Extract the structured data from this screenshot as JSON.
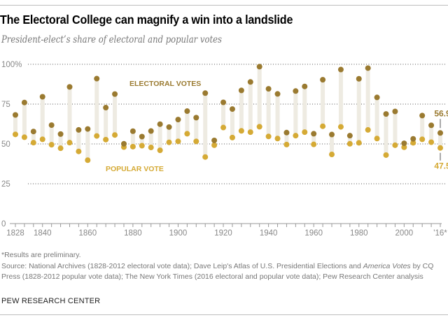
{
  "header": {
    "title": "The Electoral College can magnify a win into a landslide",
    "subtitle": "President-elect’s share of electoral and popular votes"
  },
  "chart_data": {
    "type": "scatter",
    "subtype": "dumbbell",
    "title": "The Electoral College can magnify a win into a landslide",
    "subtitle": "President-elect’s share of electoral and popular votes",
    "xlabel": "",
    "ylabel": "",
    "ylim": [
      0,
      100
    ],
    "y_ticks": [
      0,
      25,
      50,
      75,
      100
    ],
    "y_tick_labels": [
      "0",
      "25",
      "50",
      "75",
      "100%"
    ],
    "x_tick_labels": [
      "1828",
      "1840",
      "1860",
      "1880",
      "1900",
      "1920",
      "1940",
      "1960",
      "1980",
      "2000",
      "'16*"
    ],
    "x_tick_years": [
      1828,
      1840,
      1860,
      1880,
      1900,
      1920,
      1940,
      1960,
      1980,
      2000,
      2016
    ],
    "grid": true,
    "x": [
      1828,
      1832,
      1836,
      1840,
      1844,
      1848,
      1852,
      1856,
      1860,
      1864,
      1868,
      1872,
      1876,
      1880,
      1884,
      1888,
      1892,
      1896,
      1900,
      1904,
      1908,
      1912,
      1916,
      1920,
      1924,
      1928,
      1932,
      1936,
      1940,
      1944,
      1948,
      1952,
      1956,
      1960,
      1964,
      1968,
      1972,
      1976,
      1980,
      1984,
      1988,
      1992,
      1996,
      2000,
      2004,
      2008,
      2012,
      2016
    ],
    "series": [
      {
        "name": "Electoral votes",
        "label": "ELECTORAL VOTES",
        "color": "#9a7a30",
        "values": [
          68.2,
          76.0,
          57.8,
          79.6,
          61.8,
          56.2,
          85.8,
          58.8,
          59.4,
          91.0,
          72.8,
          81.3,
          50.1,
          58.0,
          54.6,
          58.1,
          62.4,
          60.6,
          65.3,
          70.6,
          66.5,
          81.9,
          52.2,
          76.1,
          71.9,
          83.6,
          88.9,
          98.5,
          84.6,
          81.4,
          57.1,
          83.2,
          86.1,
          56.4,
          90.3,
          55.9,
          96.7,
          55.2,
          90.9,
          97.6,
          79.2,
          68.8,
          70.4,
          50.4,
          53.2,
          67.8,
          61.7,
          56.9
        ]
      },
      {
        "name": "Popular vote",
        "label": "POPULAR VOTE",
        "color": "#d5aa35",
        "values": [
          56.0,
          54.2,
          50.8,
          52.9,
          49.5,
          47.3,
          50.8,
          45.3,
          39.8,
          55.0,
          52.7,
          55.6,
          48.0,
          48.3,
          48.9,
          47.8,
          46.0,
          51.0,
          51.6,
          56.4,
          51.6,
          41.8,
          49.2,
          60.3,
          54.0,
          58.2,
          57.4,
          60.8,
          54.7,
          53.4,
          49.6,
          55.2,
          57.4,
          49.7,
          61.1,
          43.4,
          60.7,
          50.1,
          50.7,
          58.8,
          53.4,
          43.0,
          49.2,
          47.9,
          50.7,
          52.9,
          51.1,
          47.5
        ]
      }
    ],
    "annotations": [
      {
        "text": "56.9",
        "series": "Electoral votes",
        "x": 2016
      },
      {
        "text": "47.5",
        "series": "Popular vote",
        "x": 2016
      }
    ],
    "legend": "inline-labels"
  },
  "footer": {
    "note": "*Results are preliminary.",
    "source_a": "Source: National Archives (1828-2012 electoral vote data); Dave Leip's Atlas of U.S. Presidential Elections and ",
    "source_italic": "America Votes",
    "source_b": " by CQ Press (1828-2012 popular vote data); The New York Times (2016 electoral and popular vote data); Pew Research Center analysis",
    "brand": "PEW RESEARCH CENTER"
  },
  "colors": {
    "electoral": "#9a7a30",
    "popular": "#d5aa35",
    "stem": "#eeebe2",
    "grid": "#555555",
    "axis_text": "#888888"
  }
}
